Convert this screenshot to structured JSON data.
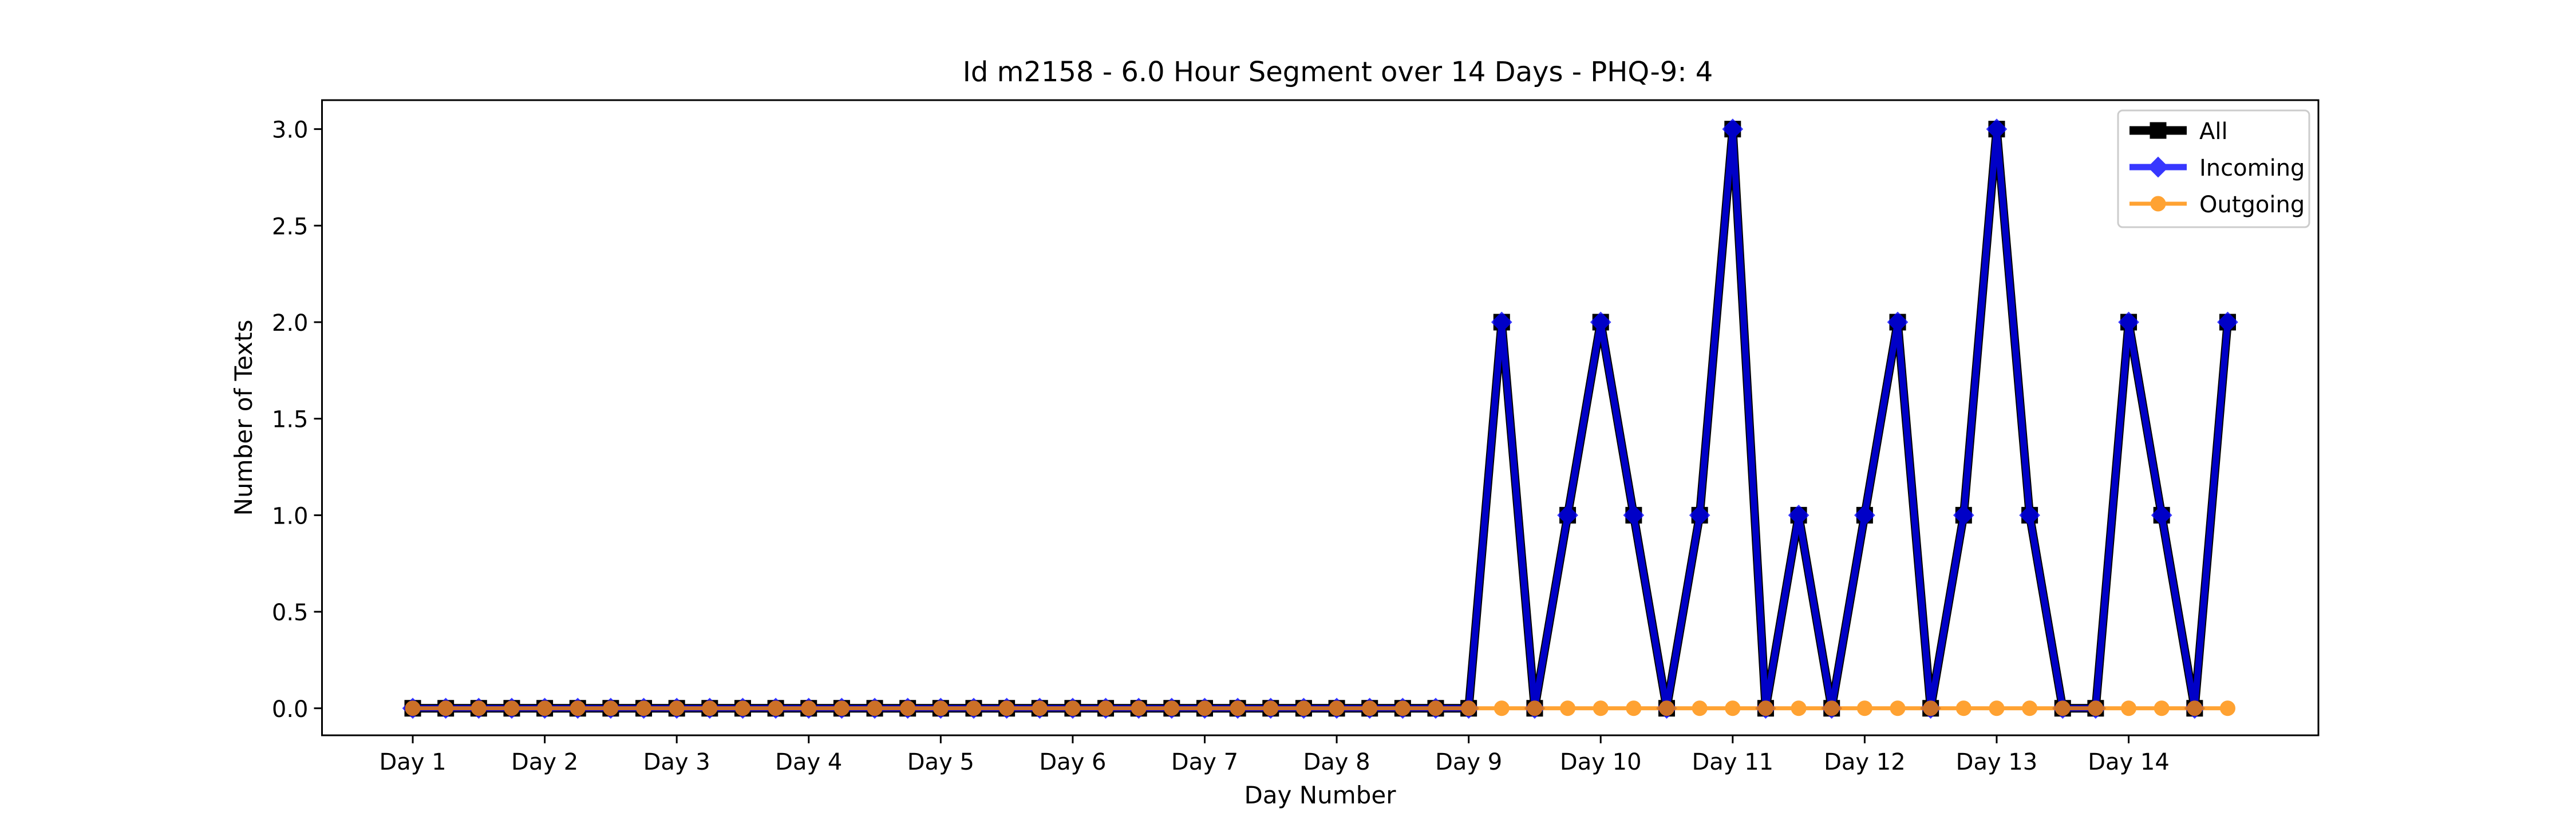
{
  "chart_data": {
    "type": "line",
    "title": "Id m2158 - 6.0 Hour Segment over 14 Days - PHQ-9: 4",
    "xlabel": "Day Number",
    "ylabel": "Number of Texts",
    "ylim": [
      -0.14,
      3.15
    ],
    "xlim": [
      -2.75,
      57.75
    ],
    "y_ticks": [
      "0.0",
      "0.5",
      "1.0",
      "1.5",
      "2.0",
      "2.5",
      "3.0"
    ],
    "x_tick_positions": [
      0,
      4,
      8,
      12,
      16,
      20,
      24,
      28,
      32,
      36,
      40,
      44,
      48,
      52
    ],
    "x_tick_labels": [
      "Day 1",
      "Day 2",
      "Day 3",
      "Day 4",
      "Day 5",
      "Day 6",
      "Day 7",
      "Day 8",
      "Day 9",
      "Day 10",
      "Day 11",
      "Day 12",
      "Day 13",
      "Day 14"
    ],
    "grid": false,
    "legend_position": "top-right",
    "x": [
      0,
      1,
      2,
      3,
      4,
      5,
      6,
      7,
      8,
      9,
      10,
      11,
      12,
      13,
      14,
      15,
      16,
      17,
      18,
      19,
      20,
      21,
      22,
      23,
      24,
      25,
      26,
      27,
      28,
      29,
      30,
      31,
      32,
      33,
      34,
      35,
      36,
      37,
      38,
      39,
      40,
      41,
      42,
      43,
      44,
      45,
      46,
      47,
      48,
      49,
      50,
      51,
      52,
      53,
      54,
      55
    ],
    "series": [
      {
        "name": "All",
        "color": "#000000",
        "marker": "square",
        "values": [
          0,
          0,
          0,
          0,
          0,
          0,
          0,
          0,
          0,
          0,
          0,
          0,
          0,
          0,
          0,
          0,
          0,
          0,
          0,
          0,
          0,
          0,
          0,
          0,
          0,
          0,
          0,
          0,
          0,
          0,
          0,
          0,
          0,
          2,
          0,
          1,
          2,
          1,
          0,
          1,
          3,
          0,
          1,
          0,
          1,
          2,
          0,
          1,
          3,
          1,
          0,
          0,
          2,
          1,
          0,
          2
        ]
      },
      {
        "name": "Incoming",
        "color": "#0000ff",
        "marker": "diamond",
        "values": [
          0,
          0,
          0,
          0,
          0,
          0,
          0,
          0,
          0,
          0,
          0,
          0,
          0,
          0,
          0,
          0,
          0,
          0,
          0,
          0,
          0,
          0,
          0,
          0,
          0,
          0,
          0,
          0,
          0,
          0,
          0,
          0,
          0,
          2,
          0,
          1,
          2,
          1,
          0,
          1,
          3,
          0,
          1,
          0,
          1,
          2,
          0,
          1,
          3,
          1,
          0,
          0,
          2,
          1,
          0,
          2
        ]
      },
      {
        "name": "Outgoing",
        "color": "#ff8c00",
        "marker": "circle",
        "values": [
          0,
          0,
          0,
          0,
          0,
          0,
          0,
          0,
          0,
          0,
          0,
          0,
          0,
          0,
          0,
          0,
          0,
          0,
          0,
          0,
          0,
          0,
          0,
          0,
          0,
          0,
          0,
          0,
          0,
          0,
          0,
          0,
          0,
          0,
          0,
          0,
          0,
          0,
          0,
          0,
          0,
          0,
          0,
          0,
          0,
          0,
          0,
          0,
          0,
          0,
          0,
          0,
          0,
          0,
          0,
          0
        ]
      }
    ]
  }
}
